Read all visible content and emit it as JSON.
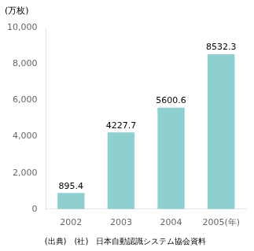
{
  "chart_data": {
    "type": "bar",
    "ylabel": "(万枚)",
    "caption": "(出典)　(社)　日本自動認識システム協会資料",
    "categories": [
      "2002",
      "2003",
      "2004",
      "2005(年)"
    ],
    "values": [
      895.4,
      4227.7,
      5600.6,
      8532.3
    ],
    "color": "#8ecfd0",
    "ylim": [
      0,
      10000
    ],
    "yticks": [
      0,
      {
        "value": 2000,
        "label": "2,000"
      },
      {
        "value": 4000,
        "label": "4,000"
      },
      {
        "value": 6000,
        "label": "6,000"
      },
      {
        "value": 8000,
        "label": "8,000"
      },
      {
        "value": 10000,
        "label": "10,000"
      }
    ],
    "grid": false,
    "data_labels": true
  }
}
